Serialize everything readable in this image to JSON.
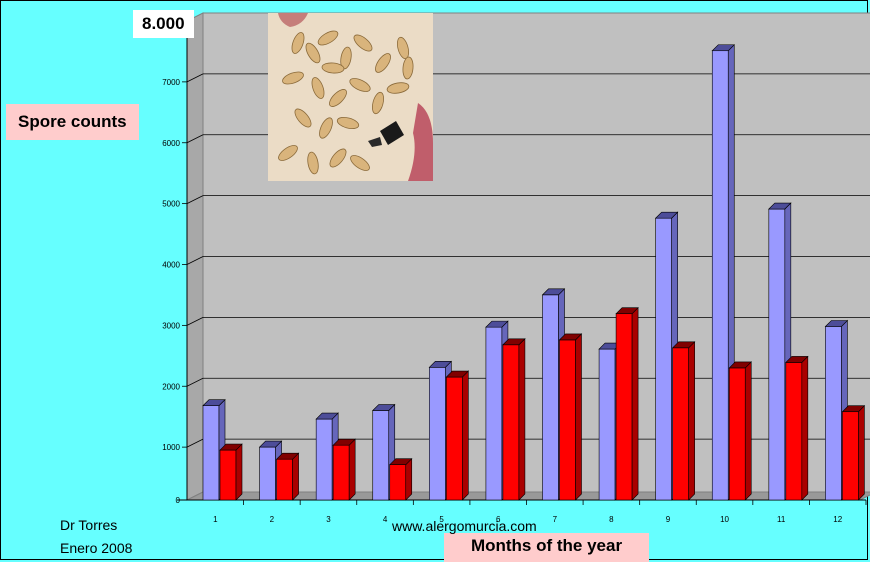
{
  "chart_data": {
    "type": "bar",
    "title": "",
    "xlabel": "Months of the year",
    "ylabel": "Spore counts",
    "ymax_label": "8.000",
    "ylim": [
      0,
      8000
    ],
    "yticks": [
      0,
      1000,
      2000,
      3000,
      4000,
      5000,
      6000,
      7000
    ],
    "grid": true,
    "categories": [
      "1",
      "2",
      "3",
      "4",
      "5",
      "6",
      "7",
      "8",
      "9",
      "10",
      "11",
      "12"
    ],
    "series": [
      {
        "values": [
          1550,
          870,
          1330,
          1470,
          2180,
          2840,
          3370,
          2480,
          4630,
          7380,
          4780,
          2850
        ],
        "color": "#9999ff"
      },
      {
        "values": [
          820,
          670,
          900,
          580,
          2020,
          2550,
          2630,
          3060,
          2500,
          2170,
          2260,
          1450
        ],
        "color": "#ff0000"
      }
    ]
  },
  "footer": {
    "author": "Dr Torres",
    "date": "Enero 2008",
    "website": "www.alergomurcia.com"
  },
  "colors": {
    "background": "#66ffff",
    "plot_area": "#c0c0c0",
    "label_box": "#ffcccc"
  },
  "photo": {
    "icon": "spore-micrograph-image"
  }
}
